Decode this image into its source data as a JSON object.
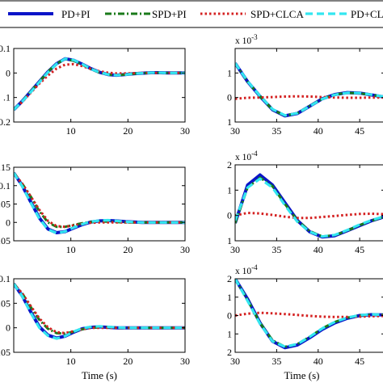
{
  "legend": {
    "entries": [
      {
        "label": "PD+PI",
        "color": "#0a14c8",
        "style": "solid"
      },
      {
        "label": "SPD+PI",
        "color": "#1a7a1a",
        "style": "dashdot"
      },
      {
        "label": "SPD+CLCA",
        "color": "#d42020",
        "style": "dotted"
      },
      {
        "label": "PD+CLCA",
        "color": "#33e6f0",
        "style": "dashed"
      }
    ]
  },
  "chart_data": [
    {
      "type": "line",
      "xlim": [
        0,
        30
      ],
      "ylim": [
        -0.2,
        0.1
      ],
      "yticks": [
        -0.2,
        -0.1,
        0,
        0.1
      ],
      "ytick_labels": [
        "0.2",
        ".1",
        "0",
        "0.1"
      ],
      "xticks": [
        10,
        20,
        30
      ],
      "xtick_labels": [
        "10",
        "20",
        "30"
      ],
      "exponent": "",
      "xlabel": "",
      "x": [
        0,
        1.5,
        3,
        4.5,
        6,
        7.5,
        9,
        10.5,
        12,
        13.5,
        15,
        16.5,
        18,
        19.5,
        21,
        22.5,
        24,
        25.5,
        27,
        28.5,
        30
      ],
      "series": [
        {
          "color": "#0a14c8",
          "style": "solid",
          "values": [
            -0.15,
            -0.115,
            -0.075,
            -0.035,
            0.005,
            0.038,
            0.058,
            0.052,
            0.036,
            0.018,
            0.003,
            -0.006,
            -0.009,
            -0.006,
            -0.003,
            -0.001,
            0.001,
            0.001,
            0.0,
            0.0,
            0.0
          ]
        },
        {
          "color": "#1a7a1a",
          "style": "dashdot",
          "values": [
            -0.15,
            -0.115,
            -0.075,
            -0.035,
            0.005,
            0.038,
            0.057,
            0.05,
            0.034,
            0.016,
            0.002,
            -0.006,
            -0.009,
            -0.006,
            -0.003,
            -0.001,
            0.001,
            0.001,
            0.0,
            0.0,
            0.0
          ]
        },
        {
          "color": "#d42020",
          "style": "dotted",
          "values": [
            -0.15,
            -0.118,
            -0.08,
            -0.043,
            -0.01,
            0.018,
            0.034,
            0.036,
            0.028,
            0.017,
            0.007,
            0.001,
            -0.002,
            -0.002,
            -0.001,
            0.0,
            0.0,
            0.0,
            0.0,
            0.0,
            0.0
          ]
        },
        {
          "color": "#33e6f0",
          "style": "dashed",
          "values": [
            -0.15,
            -0.116,
            -0.077,
            -0.037,
            0.003,
            0.037,
            0.058,
            0.053,
            0.036,
            0.017,
            0.003,
            -0.006,
            -0.009,
            -0.007,
            -0.003,
            -0.001,
            0.001,
            0.001,
            0.0,
            0.0,
            0.0
          ]
        }
      ]
    },
    {
      "type": "line",
      "xlim": [
        30,
        48
      ],
      "ylim": [
        -1.0,
        2.0
      ],
      "yticks": [
        -1.0,
        0,
        1.0
      ],
      "ytick_labels": [
        "1",
        "0",
        "1"
      ],
      "xticks": [
        30,
        35,
        40,
        45
      ],
      "xtick_labels": [
        "30",
        "35",
        "40",
        "45"
      ],
      "exponent": "x 10",
      "exponent_power": "-3",
      "xlabel": "",
      "x": [
        30,
        31.5,
        33,
        34.5,
        36,
        37.5,
        39,
        40.5,
        42,
        43.5,
        45,
        46.5,
        48
      ],
      "series": [
        {
          "color": "#0a14c8",
          "style": "solid",
          "values": [
            1.4,
            0.65,
            0.05,
            -0.5,
            -0.75,
            -0.65,
            -0.35,
            -0.05,
            0.12,
            0.2,
            0.18,
            0.1,
            0.02
          ]
        },
        {
          "color": "#1a7a1a",
          "style": "dashdot",
          "values": [
            1.4,
            0.65,
            0.05,
            -0.5,
            -0.74,
            -0.64,
            -0.34,
            -0.05,
            0.12,
            0.19,
            0.17,
            0.1,
            0.02
          ]
        },
        {
          "color": "#d42020",
          "style": "dotted",
          "values": [
            -0.05,
            -0.01,
            0.0,
            0.02,
            0.04,
            0.05,
            0.04,
            0.02,
            0.0,
            -0.01,
            -0.01,
            0.0,
            0.0
          ]
        },
        {
          "color": "#33e6f0",
          "style": "dashed",
          "values": [
            1.4,
            0.66,
            0.06,
            -0.48,
            -0.73,
            -0.64,
            -0.35,
            -0.06,
            0.11,
            0.19,
            0.18,
            0.11,
            0.03
          ]
        }
      ]
    },
    {
      "type": "line",
      "xlim": [
        0,
        30
      ],
      "ylim": [
        -0.05,
        0.15
      ],
      "yticks": [
        -0.05,
        0,
        0.05,
        0.1,
        0.15
      ],
      "ytick_labels": [
        ".05",
        "0",
        ".05",
        "0.1",
        ".15"
      ],
      "xticks": [
        10,
        20,
        30
      ],
      "xtick_labels": [
        "10",
        "20",
        "30"
      ],
      "exponent": "",
      "xlabel": "",
      "x": [
        0,
        1.5,
        3,
        4.5,
        6,
        7.5,
        9,
        10.5,
        12,
        13.5,
        15,
        16.5,
        18,
        19.5,
        21,
        22.5,
        24,
        25.5,
        27,
        28.5,
        30
      ],
      "series": [
        {
          "color": "#0a14c8",
          "style": "solid",
          "values": [
            0.135,
            0.1,
            0.055,
            0.012,
            -0.018,
            -0.028,
            -0.025,
            -0.015,
            -0.006,
            0.001,
            0.004,
            0.005,
            0.004,
            0.002,
            0.001,
            0.0,
            0.0,
            0.0,
            0.0,
            0.0,
            0.0
          ]
        },
        {
          "color": "#1a7a1a",
          "style": "dashdot",
          "values": [
            0.135,
            0.105,
            0.07,
            0.03,
            0.0,
            -0.012,
            -0.012,
            -0.007,
            -0.002,
            0.001,
            0.002,
            0.002,
            0.001,
            0.0,
            0.0,
            0.0,
            0.0,
            0.0,
            0.0,
            0.0,
            0.0
          ]
        },
        {
          "color": "#d42020",
          "style": "dotted",
          "values": [
            0.135,
            0.105,
            0.07,
            0.034,
            0.004,
            -0.01,
            -0.012,
            -0.008,
            -0.004,
            -0.001,
            0.0,
            0.0,
            0.0,
            0.0,
            0.0,
            0.0,
            0.0,
            0.0,
            0.0,
            0.0,
            0.0
          ]
        },
        {
          "color": "#33e6f0",
          "style": "dashed",
          "values": [
            0.135,
            0.098,
            0.053,
            0.01,
            -0.019,
            -0.029,
            -0.025,
            -0.014,
            -0.005,
            0.002,
            0.005,
            0.006,
            0.004,
            0.002,
            0.001,
            0.0,
            0.0,
            0.0,
            0.0,
            0.0,
            0.0
          ]
        }
      ]
    },
    {
      "type": "line",
      "xlim": [
        30,
        48
      ],
      "ylim": [
        -1.0,
        2.0
      ],
      "yticks": [
        -1.0,
        0,
        1.0,
        2.0
      ],
      "ytick_labels": [
        "1",
        "0",
        "1",
        "2"
      ],
      "xticks": [
        30,
        35,
        40,
        45
      ],
      "xtick_labels": [
        "30",
        "35",
        "40",
        "45"
      ],
      "exponent": "x 10",
      "exponent_power": "-4",
      "xlabel": "",
      "x": [
        30,
        31.5,
        33,
        34.5,
        36,
        37.5,
        39,
        40.5,
        42,
        43.5,
        45,
        46.5,
        48
      ],
      "series": [
        {
          "color": "#0a14c8",
          "style": "solid",
          "values": [
            -0.3,
            1.2,
            1.6,
            1.2,
            0.5,
            -0.2,
            -0.65,
            -0.85,
            -0.8,
            -0.6,
            -0.4,
            -0.2,
            -0.05
          ]
        },
        {
          "color": "#1a7a1a",
          "style": "dashdot",
          "values": [
            -0.3,
            1.1,
            1.5,
            1.15,
            0.45,
            -0.2,
            -0.62,
            -0.83,
            -0.78,
            -0.6,
            -0.38,
            -0.2,
            -0.05
          ]
        },
        {
          "color": "#d42020",
          "style": "dotted",
          "values": [
            0.0,
            0.1,
            0.08,
            0.02,
            -0.05,
            -0.1,
            -0.1,
            -0.06,
            -0.02,
            0.02,
            0.06,
            0.07,
            0.05
          ]
        },
        {
          "color": "#33e6f0",
          "style": "dashed",
          "values": [
            -0.2,
            1.1,
            1.45,
            1.1,
            0.4,
            -0.25,
            -0.65,
            -0.83,
            -0.77,
            -0.58,
            -0.36,
            -0.18,
            -0.03
          ]
        }
      ]
    },
    {
      "type": "line",
      "xlim": [
        0,
        30
      ],
      "ylim": [
        -0.05,
        0.1
      ],
      "yticks": [
        -0.05,
        0,
        0.05,
        0.1
      ],
      "ytick_labels": [
        ".05",
        "0",
        ".05",
        "0.1"
      ],
      "xticks": [
        10,
        20,
        30
      ],
      "xtick_labels": [
        "10",
        "20",
        "30"
      ],
      "exponent": "",
      "xlabel": "Time (s)",
      "x": [
        0,
        1.5,
        3,
        4.5,
        6,
        7.5,
        9,
        10.5,
        12,
        13.5,
        15,
        16.5,
        18,
        19.5,
        21,
        22.5,
        24,
        25.5,
        27,
        28.5,
        30
      ],
      "series": [
        {
          "color": "#0a14c8",
          "style": "solid",
          "values": [
            0.09,
            0.065,
            0.032,
            0.002,
            -0.015,
            -0.021,
            -0.017,
            -0.009,
            -0.002,
            0.001,
            0.002,
            0.001,
            0.0,
            0.0,
            0.0,
            0.0,
            0.0,
            0.0,
            0.0,
            0.0,
            0.0
          ]
        },
        {
          "color": "#1a7a1a",
          "style": "dashdot",
          "values": [
            0.09,
            0.07,
            0.042,
            0.016,
            -0.002,
            -0.011,
            -0.012,
            -0.008,
            -0.003,
            0.0,
            0.001,
            0.001,
            0.0,
            0.0,
            0.0,
            0.0,
            0.0,
            0.0,
            0.0,
            0.0,
            0.0
          ]
        },
        {
          "color": "#d42020",
          "style": "dotted",
          "values": [
            0.09,
            0.07,
            0.044,
            0.019,
            0.001,
            -0.009,
            -0.011,
            -0.007,
            -0.003,
            0.0,
            0.0,
            0.0,
            0.0,
            0.0,
            0.0,
            0.0,
            0.0,
            0.0,
            0.0,
            0.0,
            0.0
          ]
        },
        {
          "color": "#33e6f0",
          "style": "dashed",
          "values": [
            0.09,
            0.064,
            0.03,
            0.0,
            -0.016,
            -0.022,
            -0.017,
            -0.008,
            -0.001,
            0.002,
            0.003,
            0.002,
            0.001,
            0.0,
            0.0,
            0.0,
            0.0,
            0.0,
            0.0,
            0.0,
            0.0
          ]
        }
      ]
    },
    {
      "type": "line",
      "xlim": [
        30,
        48
      ],
      "ylim": [
        -2.0,
        2.0
      ],
      "yticks": [
        -2.0,
        -1.0,
        0,
        1.0,
        2.0
      ],
      "ytick_labels": [
        "2",
        "1",
        "0",
        "1",
        "2"
      ],
      "xticks": [
        30,
        35,
        40,
        45
      ],
      "xtick_labels": [
        "30",
        "35",
        "40",
        "45"
      ],
      "exponent": "x 10",
      "exponent_power": "-4",
      "xlabel": "Time (s)",
      "x": [
        30,
        31.5,
        33,
        34.5,
        36,
        37.5,
        39,
        40.5,
        42,
        43.5,
        45,
        46.5,
        48
      ],
      "series": [
        {
          "color": "#0a14c8",
          "style": "solid",
          "values": [
            2.0,
            0.9,
            -0.4,
            -1.4,
            -1.75,
            -1.6,
            -1.2,
            -0.75,
            -0.4,
            -0.15,
            0.0,
            0.05,
            0.03
          ]
        },
        {
          "color": "#1a7a1a",
          "style": "dashdot",
          "values": [
            2.0,
            0.85,
            -0.4,
            -1.35,
            -1.7,
            -1.55,
            -1.15,
            -0.7,
            -0.35,
            -0.12,
            0.0,
            0.05,
            0.03
          ]
        },
        {
          "color": "#d42020",
          "style": "dotted",
          "values": [
            0.0,
            0.1,
            0.15,
            0.12,
            0.08,
            0.03,
            -0.02,
            -0.06,
            -0.08,
            -0.08,
            -0.06,
            -0.04,
            -0.02
          ]
        },
        {
          "color": "#33e6f0",
          "style": "dashed",
          "values": [
            2.0,
            0.8,
            -0.45,
            -1.4,
            -1.7,
            -1.55,
            -1.15,
            -0.7,
            -0.35,
            -0.12,
            0.02,
            0.06,
            0.04
          ]
        }
      ]
    }
  ]
}
